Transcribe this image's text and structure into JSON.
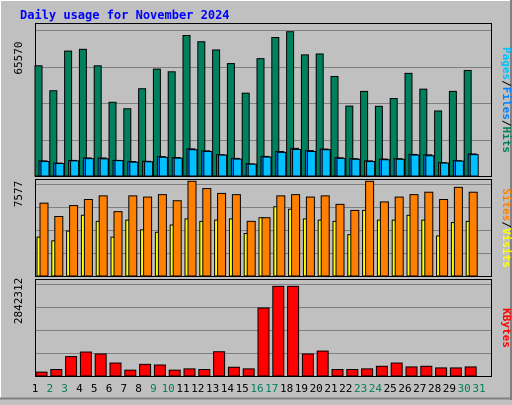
{
  "title": "Daily usage for November 2024",
  "colors": {
    "hits": "#00805c",
    "files": "#0080ff",
    "pages": "#00c0ff",
    "visits": "#ffff00",
    "sites": "#ff8000",
    "kbytes": "#ff0000",
    "weekend_label": "#00805c",
    "weekday_label": "#000000",
    "title": "#0000ff"
  },
  "legend": {
    "pages": "Pages",
    "files": "Files",
    "hits": "Hits",
    "sites": "Sites",
    "visits": "Visits",
    "kbytes": "KBytes",
    "sep": "/"
  },
  "chart_data": [
    {
      "type": "bar",
      "title": "Daily usage for November 2024",
      "ymax_label": "65570",
      "ylim": [
        0,
        65570
      ],
      "grid": true,
      "categories": [
        "1",
        "2",
        "3",
        "4",
        "5",
        "6",
        "7",
        "8",
        "9",
        "10",
        "11",
        "12",
        "13",
        "14",
        "15",
        "16",
        "17",
        "18",
        "19",
        "20",
        "21",
        "22",
        "23",
        "24",
        "25",
        "26",
        "27",
        "28",
        "29",
        "30",
        "31"
      ],
      "weekend_days": [
        2,
        3,
        9,
        10,
        16,
        17,
        23,
        24,
        30,
        31
      ],
      "series": [
        {
          "name": "Hits",
          "values": [
            49500,
            38300,
            56100,
            56900,
            49500,
            33100,
            30200,
            39200,
            48000,
            46800,
            63100,
            60300,
            56600,
            50500,
            37200,
            52700,
            62200,
            64800,
            54400,
            54800,
            44700,
            31400,
            38000,
            31300,
            34800,
            46100,
            39000,
            29200,
            38000,
            47400,
            0
          ]
        },
        {
          "name": "Files",
          "values": [
            6800,
            5800,
            7000,
            8100,
            8100,
            7000,
            6500,
            6600,
            8700,
            8300,
            12200,
            11300,
            9600,
            7900,
            5500,
            8800,
            11000,
            12400,
            11400,
            12100,
            8200,
            7800,
            6800,
            7600,
            7800,
            9700,
            9500,
            6000,
            6900,
            9900,
            0
          ]
        },
        {
          "name": "Pages",
          "values": [
            6500,
            5600,
            6800,
            7800,
            7700,
            6900,
            6200,
            6400,
            8400,
            8000,
            11800,
            11000,
            9400,
            7600,
            5300,
            8500,
            10600,
            11900,
            11000,
            11800,
            7900,
            7500,
            6500,
            7300,
            7500,
            9400,
            9100,
            5800,
            6700,
            9600,
            0
          ]
        }
      ]
    },
    {
      "type": "bar",
      "ymax_label": "7577",
      "ylim": [
        0,
        7577
      ],
      "grid": true,
      "series": [
        {
          "name": "Sites",
          "values": [
            6000,
            4900,
            5800,
            6300,
            6600,
            5300,
            6600,
            6500,
            6700,
            6200,
            7800,
            7200,
            6800,
            6700,
            4500,
            4800,
            6600,
            6700,
            6500,
            6600,
            5900,
            5400,
            7800,
            6100,
            6500,
            6700,
            6900,
            6300,
            7300,
            6900,
            0
          ]
        },
        {
          "name": "Visits",
          "values": [
            3200,
            2900,
            3700,
            5000,
            4500,
            3200,
            4600,
            3800,
            3600,
            4200,
            4700,
            4500,
            4600,
            4700,
            3500,
            4800,
            5700,
            5500,
            4700,
            4600,
            4500,
            3400,
            5400,
            4600,
            4600,
            5000,
            4600,
            3300,
            4400,
            4500,
            0
          ]
        }
      ]
    },
    {
      "type": "bar",
      "ymax_label": "2842312",
      "ylim": [
        0,
        2842312
      ],
      "grid": true,
      "series": [
        {
          "name": "KBytes",
          "values": [
            120000,
            200000,
            600000,
            740000,
            680000,
            400000,
            180000,
            360000,
            340000,
            180000,
            220000,
            200000,
            750000,
            270000,
            220000,
            2100000,
            2770000,
            2770000,
            680000,
            770000,
            200000,
            200000,
            220000,
            300000,
            400000,
            280000,
            300000,
            250000,
            250000,
            280000,
            0
          ]
        }
      ]
    }
  ]
}
